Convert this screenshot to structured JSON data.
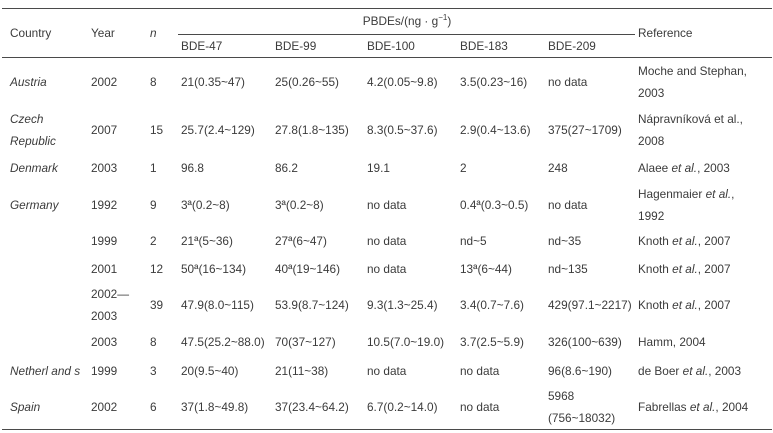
{
  "colors": {
    "text": "#3b3b3b",
    "line": "#4a4a4a",
    "background": "#ffffff"
  },
  "table": {
    "headers": {
      "country": "Country",
      "year": "Year",
      "n": "n",
      "group_pre": "PBDEs/(ng · g",
      "group_sup": "−1",
      "group_post": ")",
      "bde47": "BDE-47",
      "bde99": "BDE-99",
      "bde100": "BDE-100",
      "bde183": "BDE-183",
      "bde209": "BDE-209",
      "reference": "Reference"
    },
    "rows": [
      {
        "country": "Austria",
        "year": "2002",
        "n": "8",
        "bde47": "21(0.35~47)",
        "bde99": "25(0.26~55)",
        "bde100": "4.2(0.05~9.8)",
        "bde183": "3.5(0.23~16)",
        "bde209": "no data",
        "ref": {
          "pre": "Moche and Stephan,\n2003",
          "etal": "",
          "post": ""
        }
      },
      {
        "country": "Czech\nRepublic",
        "year": "2007",
        "n": "15",
        "bde47": "25.7(2.4~129)",
        "bde99": "27.8(1.8~135)",
        "bde100": "8.3(0.5~37.6)",
        "bde183": "2.9(0.4~13.6)",
        "bde209": "375(27~1709)",
        "ref": {
          "pre": "Nápravníková et al.,\n2008",
          "etal": "",
          "post": ""
        }
      },
      {
        "country": "Denmark",
        "year": "2003",
        "n": "1",
        "bde47": "96.8",
        "bde99": "86.2",
        "bde100": "19.1",
        "bde183": "2",
        "bde209": "248",
        "ref": {
          "pre": "Alaee ",
          "etal": "et al.",
          "post": ", 2003"
        }
      },
      {
        "country": "Germany",
        "year": "1992",
        "n": "9",
        "bde47": "3ª(0.2~8)",
        "bde99": "3ª(0.2~8)",
        "bde100": "no data",
        "bde183": "0.4ª(0.3~0.5)",
        "bde209": "no data",
        "ref": {
          "pre": "Hagenmaier ",
          "etal": "et al.",
          "post": ",\n1992"
        }
      },
      {
        "country": "",
        "year": "1999",
        "n": "2",
        "bde47": "21ª(5~36)",
        "bde99": "27ª(6~47)",
        "bde100": "no data",
        "bde183": "nd~5",
        "bde209": "nd~35",
        "ref": {
          "pre": "Knoth ",
          "etal": "et al.",
          "post": ", 2007"
        }
      },
      {
        "country": "",
        "year": "2001",
        "n": "12",
        "bde47": "50ª(16~134)",
        "bde99": "40ª(19~146)",
        "bde100": "no data",
        "bde183": "13ª(6~44)",
        "bde209": "nd~135",
        "ref": {
          "pre": "Knoth ",
          "etal": "et al.",
          "post": ", 2007"
        }
      },
      {
        "country": "",
        "year": "2002—\n2003",
        "n": "39",
        "bde47": "47.9(8.0~115)",
        "bde99": "53.9(8.7~124)",
        "bde100": "9.3(1.3~25.4)",
        "bde183": "3.4(0.7~7.6)",
        "bde209": "429(97.1~2217)",
        "ref": {
          "pre": "Knoth ",
          "etal": "et al.",
          "post": ", 2007"
        }
      },
      {
        "country": "",
        "year": "2003",
        "n": "8",
        "bde47": "47.5(25.2~88.0)",
        "bde99": "70(37~127)",
        "bde100": "10.5(7.0~19.0)",
        "bde183": "3.7(2.5~5.9)",
        "bde209": "326(100~639)",
        "ref": {
          "pre": "Hamm, 2004",
          "etal": "",
          "post": ""
        }
      },
      {
        "country": "Netherl and s",
        "year": "1999",
        "n": "3",
        "bde47": "20(9.5~40)",
        "bde99": "21(11~38)",
        "bde100": "no data",
        "bde183": "no data",
        "bde209": "96(8.6~190)",
        "ref": {
          "pre": "de Boer ",
          "etal": "et al.",
          "post": ", 2003"
        }
      },
      {
        "country": "Spain",
        "year": "2002",
        "n": "6",
        "bde47": "37(1.8~49.8)",
        "bde99": "37(23.4~64.2)",
        "bde100": "6.7(0.2~14.0)",
        "bde183": "no data",
        "bde209": "5968\n(756~18032)",
        "ref": {
          "pre": "Fabrellas ",
          "etal": "et al.",
          "post": ", 2004"
        }
      }
    ]
  }
}
